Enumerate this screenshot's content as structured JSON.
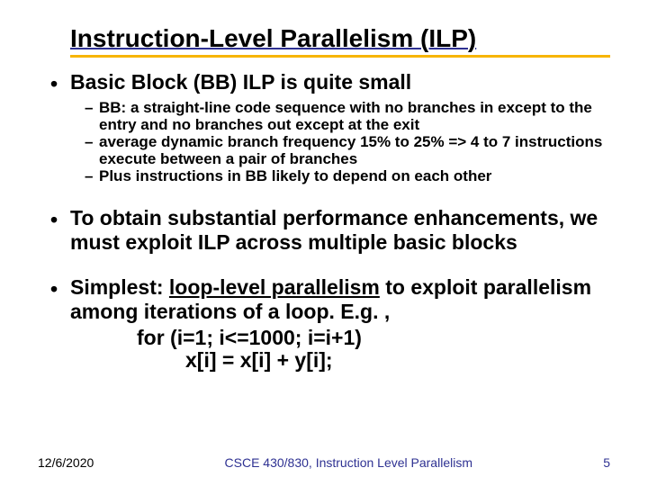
{
  "colors": {
    "accent": "#2e3192",
    "rule": "#f7b500",
    "text": "#000000",
    "bg": "#ffffff"
  },
  "title": "Instruction-Level Parallelism (ILP)",
  "bullets": {
    "b1": "Basic Block (BB) ILP is quite small",
    "b1a": "BB: a straight-line code sequence with no branches in except to the entry and no branches out except at the exit",
    "b1b": "average dynamic branch frequency 15% to 25% => 4 to 7 instructions execute between a pair of branches",
    "b1c": "Plus instructions in BB likely to depend on each other",
    "b2": "To obtain substantial performance enhancements, we must exploit ILP across multiple basic blocks",
    "b3_pre": "Simplest: ",
    "b3_u": "loop-level parallelism",
    "b3_post": " to exploit parallelism among iterations of a loop. E.g. ,",
    "code1": "for (i=1; i<=1000; i=i+1)",
    "code2": "x[i] = x[i] + y[i];"
  },
  "footer": {
    "date": "12/6/2020",
    "course": "CSCE 430/830, Instruction Level Parallelism",
    "page": "5"
  },
  "style": {
    "title_fontsize": 28,
    "l1_fontsize": 23,
    "l2_fontsize": 17,
    "footer_fontsize": 14,
    "rule_height": 3
  }
}
